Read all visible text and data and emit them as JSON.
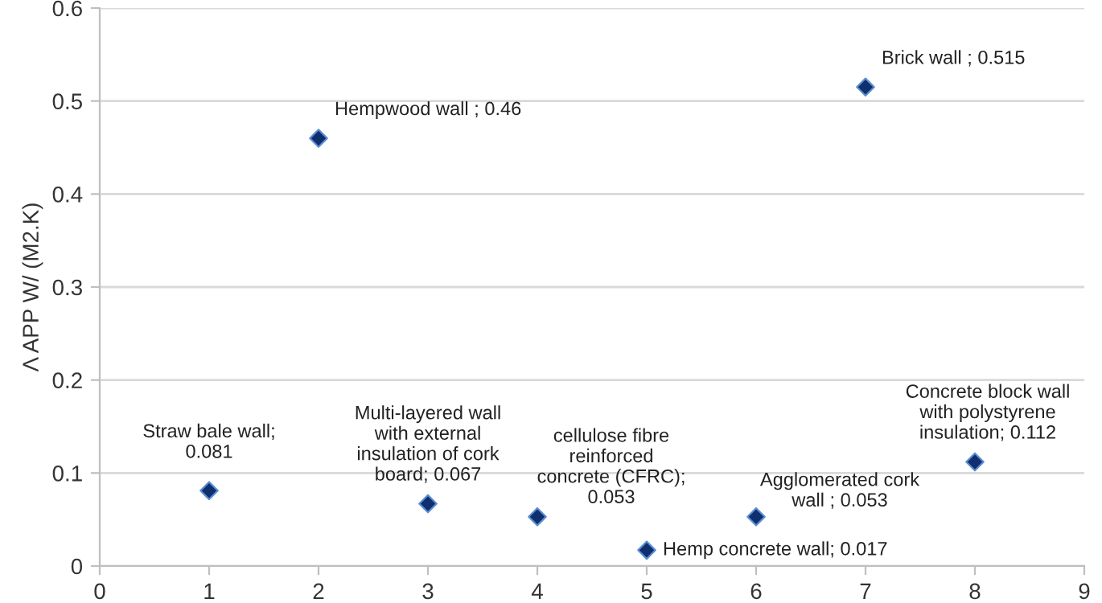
{
  "chart_data": {
    "type": "scatter",
    "ylabel": "Λ APP W/ (M2.K)",
    "x": [
      1,
      2,
      3,
      4,
      5,
      6,
      7,
      8
    ],
    "series": [
      {
        "color": "#0f2f6e",
        "values": [
          0.081,
          0.46,
          0.067,
          0.053,
          0.017,
          0.053,
          0.515,
          0.112
        ]
      }
    ],
    "xlim": [
      0,
      9
    ],
    "xticks": [
      0,
      1,
      2,
      3,
      4,
      5,
      6,
      7,
      8,
      9
    ],
    "ylim": [
      0,
      0.6
    ],
    "yticks": [
      0,
      0.1,
      0.2,
      0.3,
      0.4,
      0.5,
      0.6
    ],
    "grid": "y",
    "marker": "diamond",
    "legend": false,
    "annotations": [
      {
        "text": "Straw bale wall;\n0.081",
        "x": 1,
        "y": 0.081
      },
      {
        "text": "Hempwood wall ; 0.46",
        "x": 2,
        "y": 0.46
      },
      {
        "text": "Multi-layered wall\nwith external\ninsulation of cork\nboard; 0.067",
        "x": 3,
        "y": 0.067
      },
      {
        "text": "cellulose fibre\nreinforced\nconcrete (CFRC);\n0.053",
        "x": 4,
        "y": 0.053
      },
      {
        "text": "Hemp concrete wall; 0.017",
        "x": 5,
        "y": 0.017
      },
      {
        "text": "Agglomerated cork\nwall ; 0.053",
        "x": 6,
        "y": 0.053
      },
      {
        "text": "Brick wall ; 0.515",
        "x": 7,
        "y": 0.515
      },
      {
        "text": "Concrete block wall\nwith polystyrene\ninsulation; 0.112",
        "x": 8,
        "y": 0.112
      }
    ]
  }
}
